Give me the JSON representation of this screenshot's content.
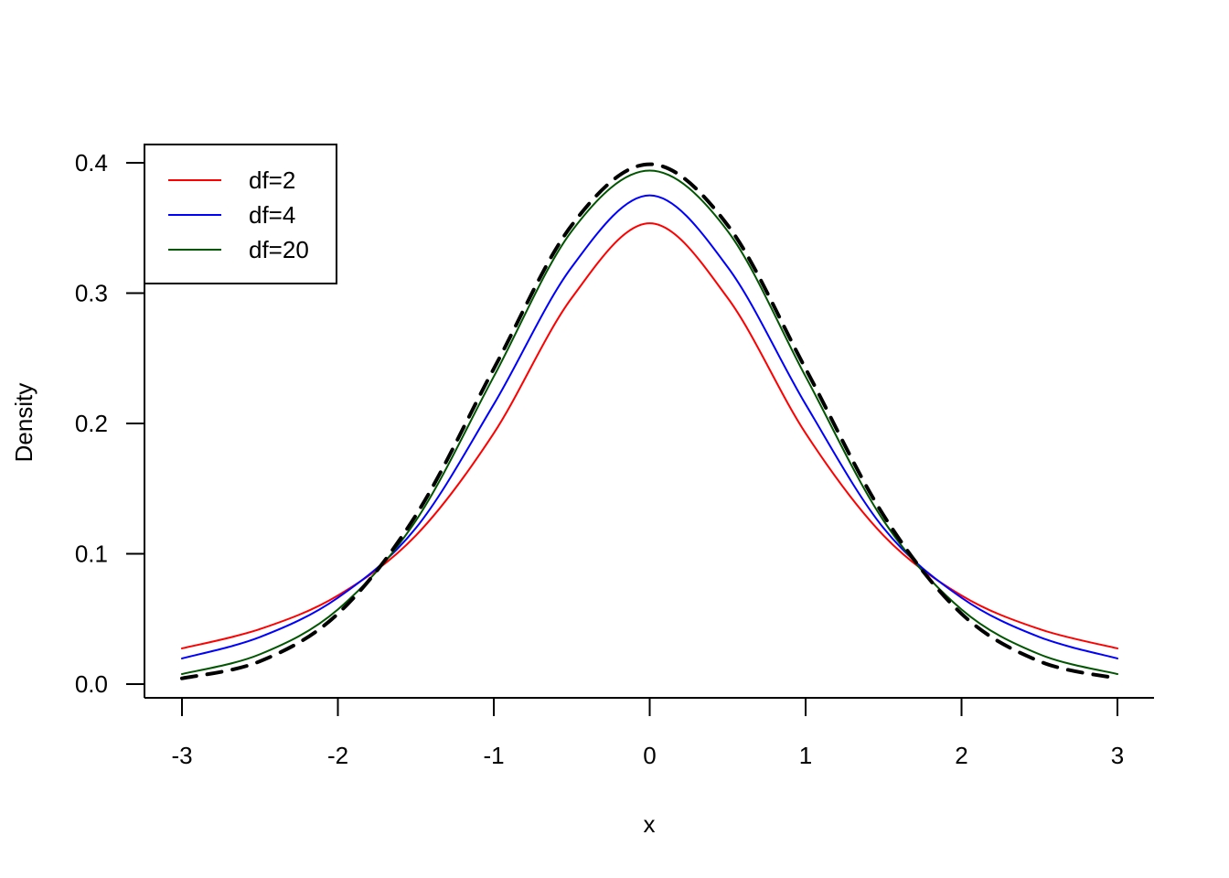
{
  "chart_data": {
    "type": "line",
    "xlabel": "x",
    "ylabel": "Density",
    "xlim": [
      -3,
      3
    ],
    "ylim": [
      0,
      0.4
    ],
    "x_ticks": [
      "-3",
      "-2",
      "-1",
      "0",
      "1",
      "2",
      "3"
    ],
    "y_ticks": [
      "0.0",
      "0.1",
      "0.2",
      "0.3",
      "0.4"
    ],
    "grid": false,
    "legend_position": "top-left",
    "x": [
      -3,
      -2.5,
      -2,
      -1.5,
      -1,
      -0.5,
      0,
      0.5,
      1,
      1.5,
      2,
      2.5,
      3
    ],
    "series": [
      {
        "name": "df=2",
        "color": "#ff0000",
        "style": "solid",
        "values": [
          0.0274,
          0.0422,
          0.068,
          0.114,
          0.1925,
          0.2963,
          0.3536,
          0.2963,
          0.1925,
          0.114,
          0.068,
          0.0422,
          0.0274
        ]
      },
      {
        "name": "df=4",
        "color": "#0000ff",
        "style": "solid",
        "values": [
          0.0197,
          0.0361,
          0.0663,
          0.1197,
          0.2147,
          0.32,
          0.375,
          0.32,
          0.2147,
          0.1197,
          0.0663,
          0.0361,
          0.0197
        ]
      },
      {
        "name": "df=20",
        "color": "#005500",
        "style": "solid",
        "values": [
          0.0077,
          0.0229,
          0.0573,
          0.1254,
          0.236,
          0.3476,
          0.394,
          0.3476,
          0.236,
          0.1254,
          0.0573,
          0.0229,
          0.0077
        ]
      },
      {
        "color": "#000000",
        "style": "dashed",
        "values": [
          0.0044,
          0.0175,
          0.054,
          0.1295,
          0.242,
          0.3521,
          0.3989,
          0.3521,
          0.242,
          0.1295,
          0.054,
          0.0175,
          0.0044
        ]
      }
    ]
  }
}
